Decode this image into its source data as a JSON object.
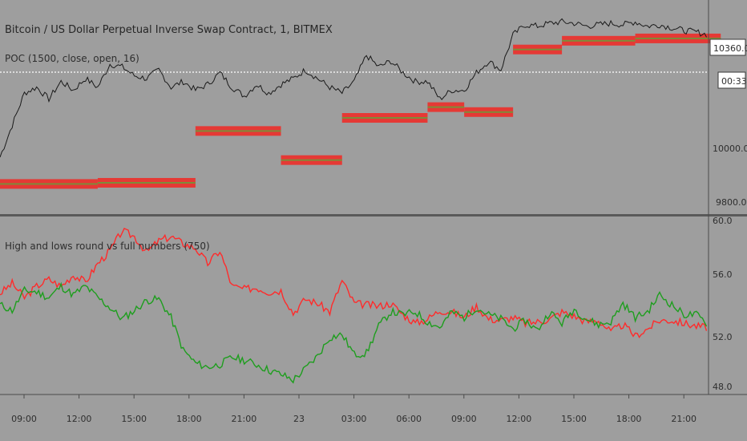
{
  "header": {
    "title": "Bitcoin / US Dollar Perpetual Inverse Swap Contract, 1, BITMEX",
    "poc_label": "POC (1500, close, open, 16)",
    "indicator_label": "High and lows round vs full numbers (750)"
  },
  "price_badge": {
    "price": "10360.0",
    "countdown": "00:33"
  },
  "colors": {
    "background": "#9e9e9e",
    "divider": "#5a5a5a",
    "price_line": "#ffffff",
    "candles": "#1a1a1a",
    "poc_outer": "#e53935",
    "poc_inner": "#7d8c3a",
    "red_series": "#ff2b2b",
    "green_series": "#1e9e1e"
  },
  "chart_data": [
    {
      "type": "line",
      "title": "Bitcoin / US Dollar Perpetual Inverse Swap Contract, 1, BITMEX",
      "y_ticks": [
        "10360.0",
        "10000.0",
        "9800.0"
      ],
      "ylim": [
        9750,
        10480
      ],
      "current_price": 10360.0,
      "price_line_level": 10232,
      "x_ticks": [
        "09:00",
        "12:00",
        "15:00",
        "18:00",
        "21:00",
        "23",
        "03:00",
        "06:00",
        "09:00",
        "12:00",
        "15:00",
        "18:00",
        "21:00"
      ],
      "close_series": [
        9940,
        10050,
        10160,
        10180,
        10140,
        10200,
        10170,
        10210,
        10180,
        10260,
        10250,
        10220,
        10210,
        10240,
        10180,
        10200,
        10170,
        10190,
        10230,
        10180,
        10150,
        10190,
        10160,
        10190,
        10210,
        10240,
        10210,
        10180,
        10160,
        10200,
        10290,
        10250,
        10270,
        10230,
        10200,
        10200,
        10140,
        10170,
        10170,
        10230,
        10270,
        10240,
        10360,
        10395,
        10390,
        10400,
        10405,
        10400,
        10390,
        10395,
        10400,
        10395,
        10405,
        10390,
        10395,
        10385,
        10375,
        10370,
        10360
      ],
      "poc_segments": [
        {
          "x_start": 0,
          "x_end": 8,
          "level": 9848
        },
        {
          "x_start": 8,
          "x_end": 16,
          "level": 9852
        },
        {
          "x_start": 16,
          "x_end": 23,
          "level": 10030
        },
        {
          "x_start": 23,
          "x_end": 28,
          "level": 9930
        },
        {
          "x_start": 28,
          "x_end": 35,
          "level": 10075
        },
        {
          "x_start": 35,
          "x_end": 38,
          "level": 10112
        },
        {
          "x_start": 38,
          "x_end": 42,
          "level": 10095
        },
        {
          "x_start": 42,
          "x_end": 46,
          "level": 10310
        },
        {
          "x_start": 46,
          "x_end": 52,
          "level": 10340
        },
        {
          "x_start": 52,
          "x_end": 59,
          "level": 10348
        }
      ]
    },
    {
      "type": "line",
      "title": "High and lows round vs full numbers (750)",
      "y_ticks": [
        "60.0",
        "56.0",
        "52.0",
        "48.0"
      ],
      "ylim": [
        47.9,
        60.2
      ],
      "series": [
        {
          "color": "#ff2b2b",
          "values": [
            54.9,
            55.6,
            54.6,
            55.4,
            55.9,
            55.4,
            56.2,
            55.7,
            57.0,
            57.9,
            59.3,
            58.9,
            57.8,
            58.6,
            58.9,
            58.4,
            58.1,
            57.0,
            57.9,
            55.4,
            55.2,
            55.3,
            55.0,
            55.1,
            53.5,
            54.5,
            54.2,
            53.6,
            55.8,
            54.2,
            54.1,
            54.0,
            54.2,
            53.4,
            52.8,
            53.1,
            53.7,
            53.6,
            53.2,
            54.0,
            53.1,
            53.0,
            53.2,
            52.8,
            52.9,
            53.1,
            53.6,
            53.3,
            52.9,
            53.0,
            52.2,
            52.7,
            51.9,
            52.4,
            53.0,
            53.0,
            52.8,
            52.6,
            52.5
          ]
        },
        {
          "color": "#1e9e1e",
          "values": [
            54.1,
            53.7,
            55.1,
            55.0,
            54.6,
            55.4,
            54.8,
            55.4,
            54.6,
            53.9,
            53.1,
            53.7,
            54.4,
            54.5,
            53.2,
            50.9,
            50.0,
            49.7,
            49.9,
            50.4,
            50.2,
            49.9,
            49.5,
            49.2,
            48.8,
            49.6,
            50.5,
            51.8,
            52.0,
            50.6,
            50.7,
            52.6,
            53.6,
            53.4,
            53.6,
            52.9,
            52.5,
            53.6,
            53.2,
            53.9,
            53.4,
            53.1,
            52.4,
            53.0,
            52.3,
            53.6,
            52.8,
            53.8,
            53.1,
            52.7,
            52.9,
            54.2,
            53.2,
            53.6,
            54.8,
            54.1,
            53.4,
            53.4,
            52.7
          ]
        }
      ]
    }
  ]
}
